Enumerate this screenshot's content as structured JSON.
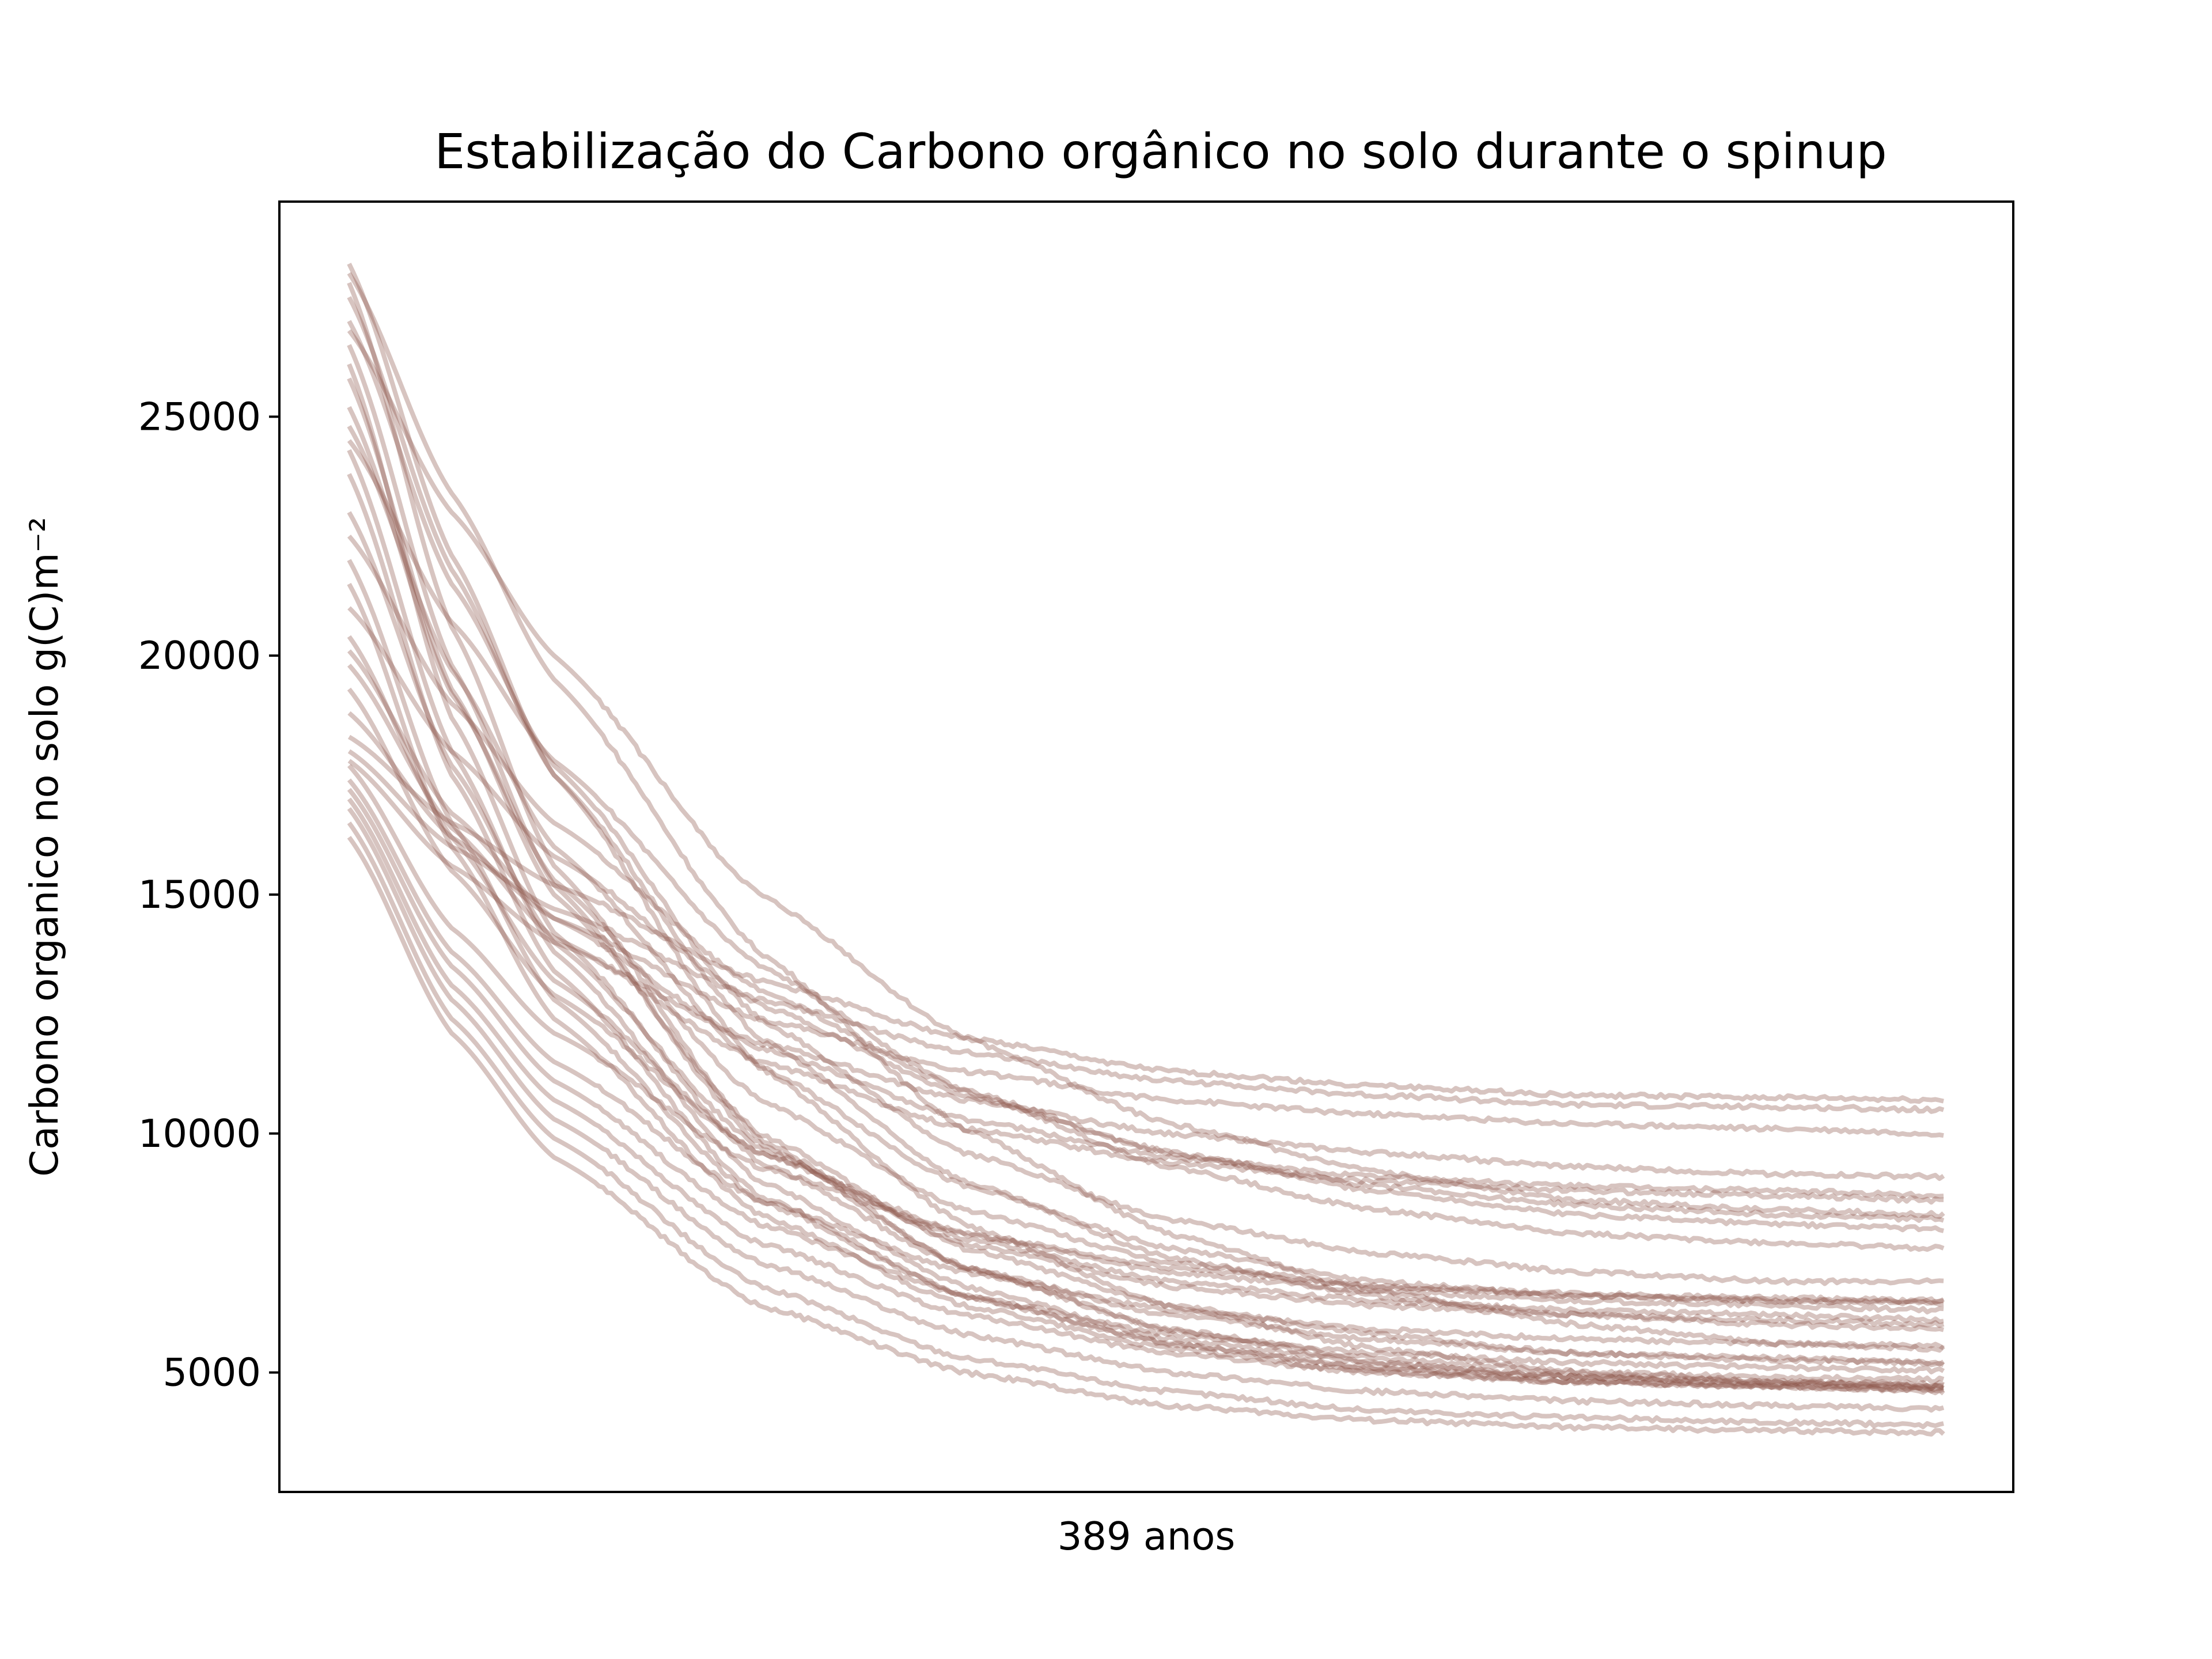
{
  "chart_data": {
    "type": "line",
    "title": "Estabilização do Carbono orgânico no solo durante o spinup",
    "xlabel": "389 anos",
    "ylabel": "Carbono organico no solo g(C)m⁻²",
    "xlim": [
      -17,
      406
    ],
    "ylim": [
      2500,
      29500
    ],
    "yticks": [
      5000,
      10000,
      15000,
      20000,
      25000
    ],
    "x_ticks_shown": false,
    "grid": false,
    "legend": "none",
    "line_color": "#8c564b",
    "line_alpha": 0.35,
    "x_points": [
      0,
      25,
      50,
      100,
      150,
      200,
      250,
      300,
      350,
      389
    ],
    "series": [
      {
        "values": [
          28200,
          22100,
          17500,
          11400,
          8100,
          6400,
          5500,
          5000,
          4800,
          4700
        ]
      },
      {
        "values": [
          28000,
          23400,
          19500,
          13800,
          10100,
          7900,
          6700,
          6000,
          5600,
          5500
        ]
      },
      {
        "values": [
          27800,
          20600,
          15600,
          9900,
          7200,
          5900,
          5200,
          4900,
          4750,
          4700
        ]
      },
      {
        "values": [
          27500,
          21800,
          17500,
          12000,
          9000,
          7400,
          6600,
          6200,
          6000,
          5900
        ]
      },
      {
        "values": [
          26500,
          19800,
          15200,
          9800,
          7200,
          5900,
          5300,
          5000,
          4900,
          4850
        ]
      },
      {
        "values": [
          26100,
          18700,
          14200,
          9400,
          7200,
          6200,
          5700,
          5400,
          5300,
          5200
        ]
      },
      {
        "values": [
          25800,
          19300,
          15000,
          10000,
          7600,
          6400,
          5800,
          5400,
          5250,
          5200
        ]
      },
      {
        "values": [
          24300,
          18000,
          13800,
          9000,
          6800,
          5700,
          5200,
          4900,
          4800,
          4700
        ]
      },
      {
        "values": [
          23800,
          17500,
          13400,
          8700,
          6600,
          5600,
          5100,
          4900,
          4800,
          4750
        ]
      },
      {
        "values": [
          23000,
          17700,
          14000,
          9700,
          7700,
          6800,
          6400,
          6200,
          6100,
          6000
        ]
      },
      {
        "values": [
          22000,
          16500,
          12800,
          8600,
          6600,
          5600,
          5100,
          4800,
          4700,
          4650
        ]
      },
      {
        "values": [
          21500,
          16000,
          12400,
          8300,
          6400,
          5500,
          5000,
          4800,
          4700,
          4600
        ]
      },
      {
        "values": [
          20400,
          16200,
          13200,
          9600,
          7800,
          6900,
          6500,
          6300,
          6200,
          6100
        ]
      },
      {
        "values": [
          20100,
          16700,
          14500,
          11800,
          10300,
          9500,
          9100,
          8900,
          8800,
          8700
        ]
      },
      {
        "values": [
          19800,
          16400,
          14100,
          11500,
          10100,
          9400,
          9000,
          8800,
          8700,
          8600
        ]
      },
      {
        "values": [
          19300,
          15500,
          12900,
          9600,
          7900,
          7100,
          6700,
          6500,
          6400,
          6300
        ]
      },
      {
        "values": [
          18800,
          16200,
          14500,
          12400,
          11300,
          10700,
          10400,
          10200,
          10100,
          10000
        ]
      },
      {
        "values": [
          18300,
          16500,
          15200,
          13200,
          12000,
          11300,
          11000,
          10800,
          10750,
          10700
        ]
      },
      {
        "values": [
          18000,
          16000,
          14700,
          12800,
          11700,
          11100,
          10800,
          10600,
          10550,
          10500
        ]
      },
      {
        "values": [
          17800,
          15600,
          14000,
          11900,
          10700,
          10000,
          9600,
          9300,
          9150,
          9100
        ]
      },
      {
        "values": [
          17700,
          14300,
          12100,
          9300,
          7900,
          7200,
          6800,
          6650,
          6550,
          6500
        ]
      },
      {
        "values": [
          17400,
          13800,
          11500,
          8600,
          7100,
          6300,
          5900,
          5700,
          5600,
          5550
        ]
      },
      {
        "values": [
          17200,
          13500,
          11100,
          8100,
          6600,
          5800,
          5400,
          5200,
          5100,
          5050
        ]
      },
      {
        "values": [
          17000,
          13100,
          10700,
          7700,
          6200,
          5400,
          5000,
          4800,
          4700,
          4650
        ]
      },
      {
        "values": [
          16800,
          12800,
          10300,
          7300,
          5800,
          5000,
          4600,
          4400,
          4300,
          4250
        ]
      },
      {
        "values": [
          16500,
          12400,
          9900,
          6800,
          5300,
          4600,
          4200,
          4050,
          3950,
          3900
        ]
      },
      {
        "values": [
          16200,
          12100,
          9500,
          6400,
          5000,
          4300,
          4000,
          3850,
          3780,
          3750
        ]
      },
      {
        "values": [
          24800,
          19700,
          16000,
          11400,
          8900,
          7600,
          6900,
          6600,
          6500,
          6450
        ]
      },
      {
        "values": [
          25200,
          19200,
          15300,
          10700,
          8400,
          7300,
          6800,
          6600,
          6500,
          6500
        ]
      },
      {
        "values": [
          27000,
          21500,
          17700,
          12400,
          9600,
          8200,
          7500,
          7100,
          6900,
          6900
        ]
      },
      {
        "values": [
          26800,
          23000,
          20000,
          15000,
          12000,
          10200,
          9200,
          8600,
          8400,
          8300
        ]
      },
      {
        "values": [
          22500,
          19000,
          16500,
          13000,
          10900,
          9600,
          8800,
          8300,
          8100,
          8000
        ]
      },
      {
        "values": [
          21000,
          18000,
          15800,
          12700,
          10800,
          9600,
          8900,
          8500,
          8300,
          8200
        ]
      },
      {
        "values": [
          24500,
          20700,
          17800,
          13500,
          10900,
          9300,
          8400,
          7900,
          7700,
          7600
        ]
      }
    ]
  }
}
